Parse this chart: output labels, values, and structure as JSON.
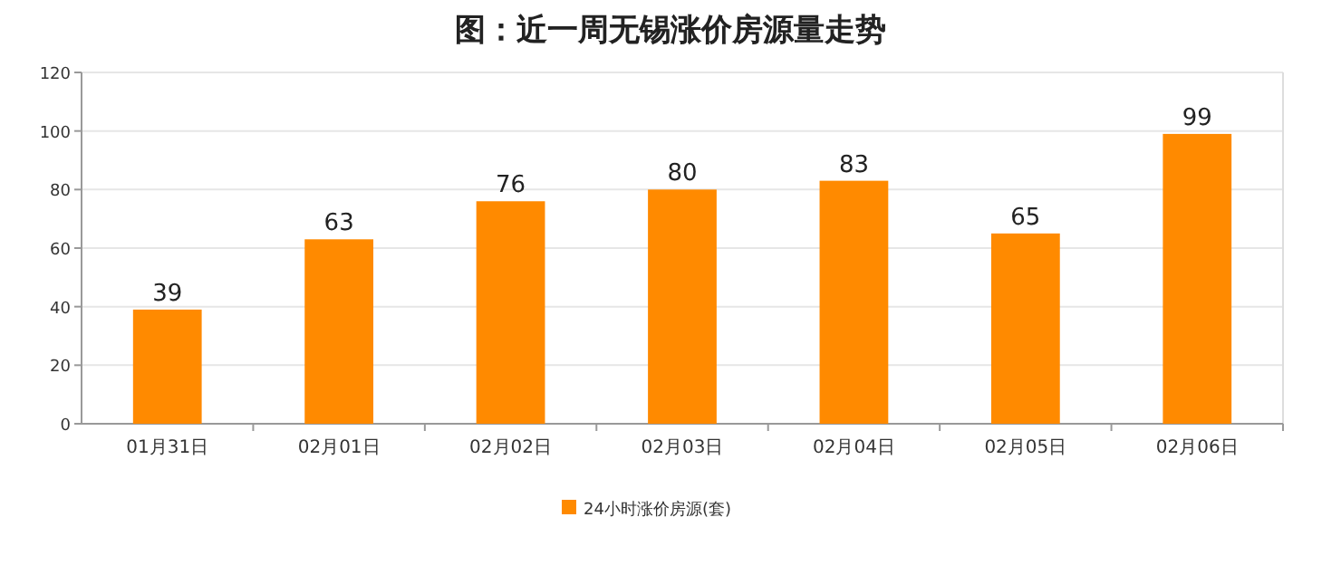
{
  "chart_data": {
    "type": "bar",
    "title": "图：近一周无锡涨价房源量走势",
    "categories": [
      "01月31日",
      "02月01日",
      "02月02日",
      "02月03日",
      "02月04日",
      "02月05日",
      "02月06日"
    ],
    "series": [
      {
        "name": "24小时涨价房源(套)",
        "color": "#ff8a00",
        "values": [
          39,
          63,
          76,
          80,
          83,
          65,
          99
        ]
      }
    ],
    "ylim": [
      0,
      120
    ],
    "yticks": [
      0,
      20,
      40,
      60,
      80,
      100,
      120
    ],
    "grid": "y",
    "legend": "bottom",
    "data_labels": true
  }
}
